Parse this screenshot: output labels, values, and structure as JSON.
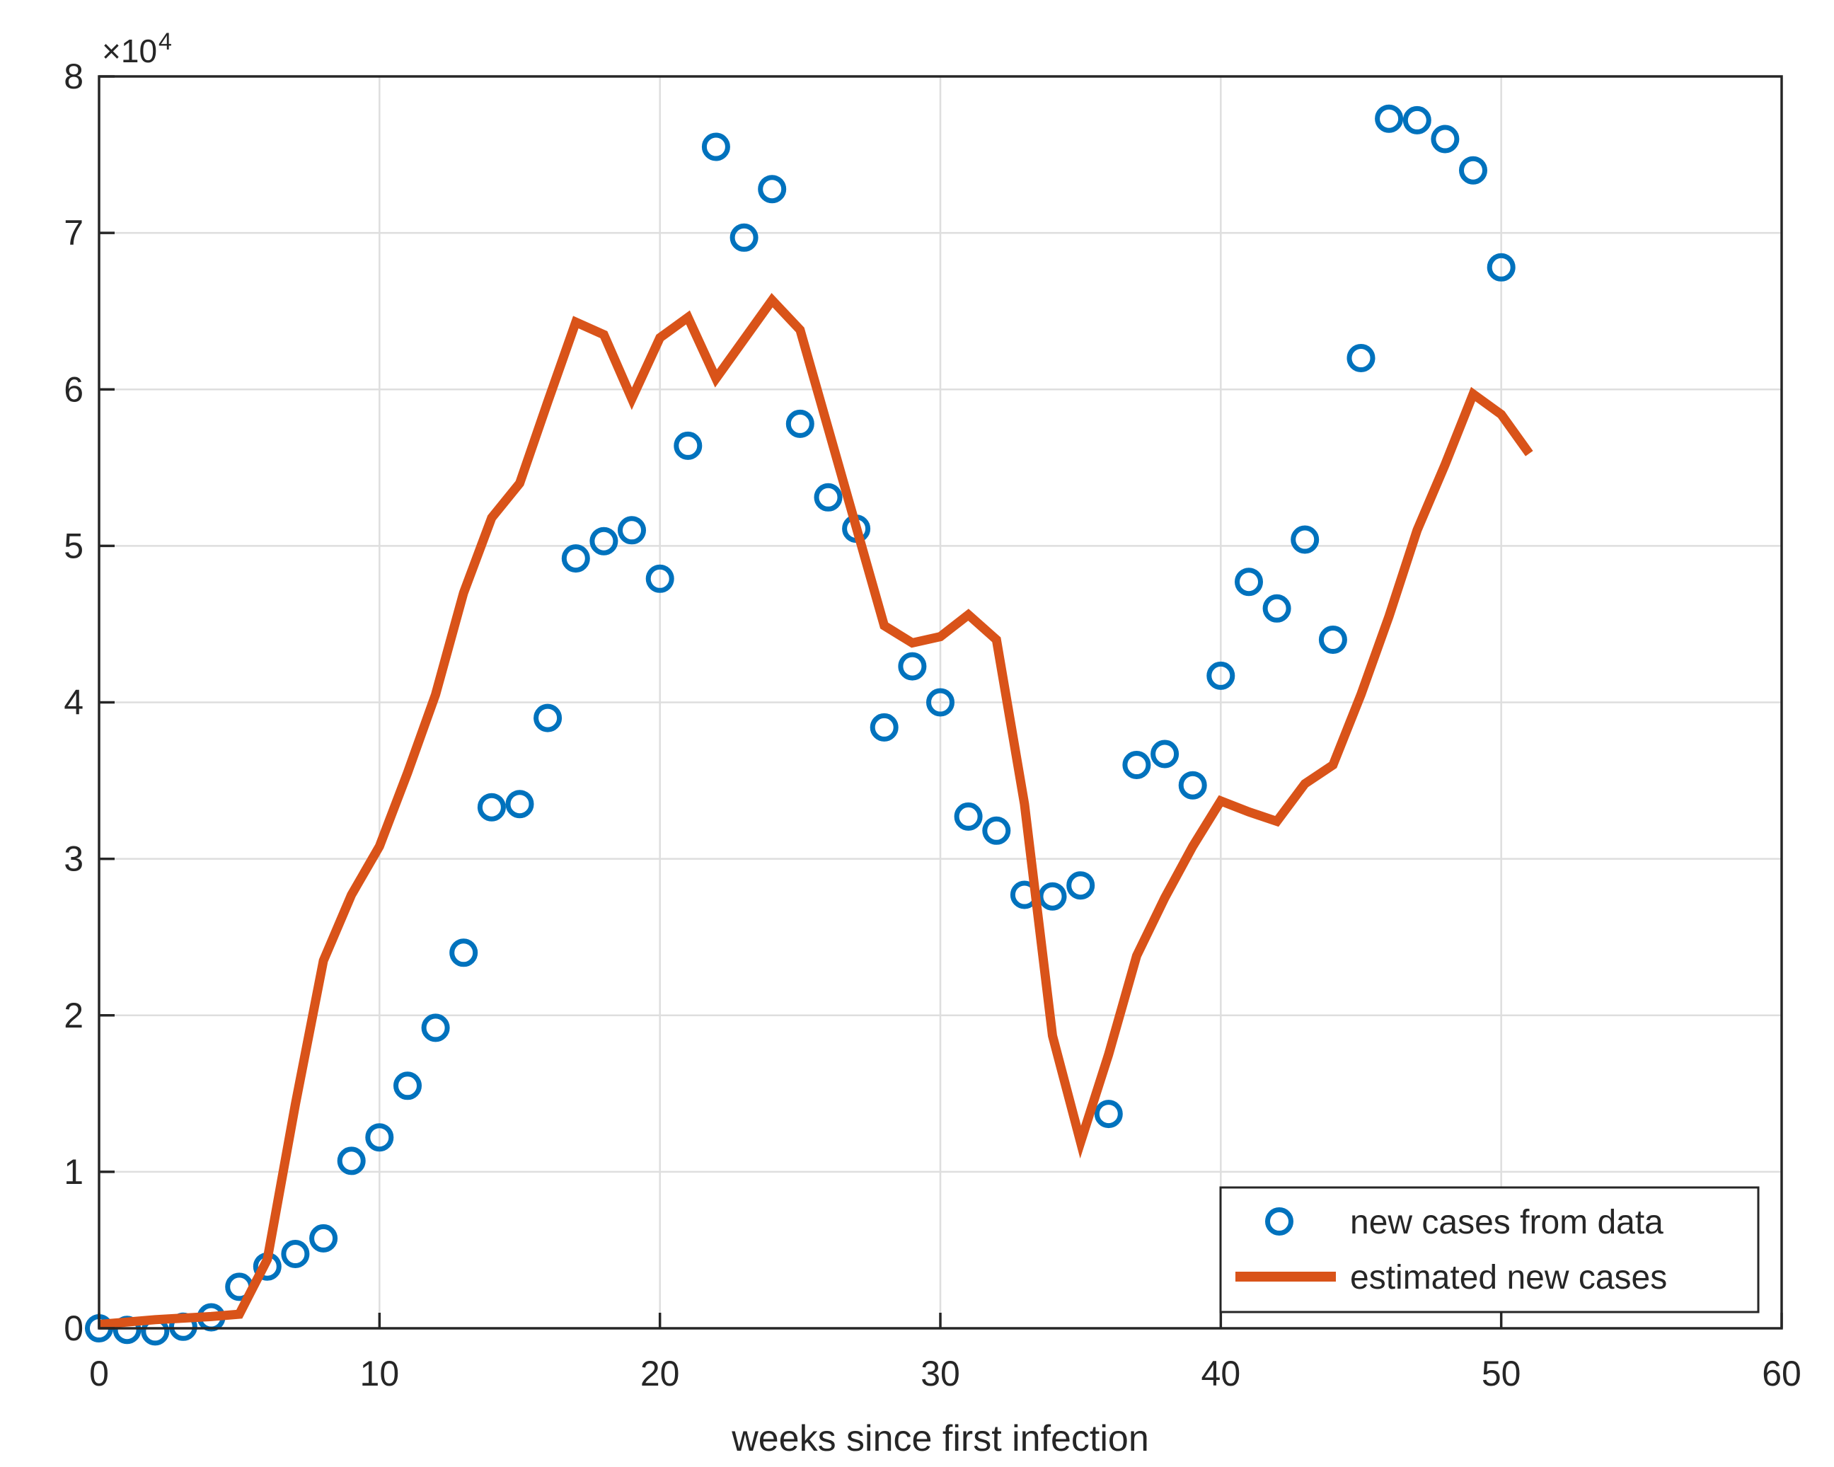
{
  "figure": {
    "xlabel": "weeks since first infection",
    "y_multiplier": {
      "prefix": "×10",
      "exponent": "4"
    },
    "legend": [
      {
        "label": "new cases from data",
        "marker": "circle"
      },
      {
        "label": "estimated new cases",
        "marker": "line"
      }
    ],
    "colors": {
      "scatter": "#0072BD",
      "line": "#D95319",
      "grid": "#dedede",
      "axis": "#262626",
      "background": "#ffffff"
    }
  },
  "chart_data": {
    "type": "scatter+line",
    "title": "",
    "xlabel": "weeks since first infection",
    "ylabel": "",
    "x_range": [
      0,
      60
    ],
    "y_range": [
      0,
      80000
    ],
    "x_tick_values": [
      0,
      10,
      20,
      30,
      40,
      50,
      60
    ],
    "y_tick_values": [
      0,
      1,
      2,
      3,
      4,
      5,
      6,
      7,
      8
    ],
    "y_tick_scale": 10000,
    "grid": true,
    "legend_position": "southeast",
    "series": [
      {
        "name": "new cases from data",
        "type": "scatter",
        "color": "#0072BD",
        "marker_radius": 16.5,
        "marker_stroke": 7,
        "x": [
          0,
          1,
          2,
          3,
          4,
          5,
          6,
          7,
          8,
          9,
          10,
          11,
          12,
          13,
          14,
          15,
          16,
          17,
          18,
          19,
          20,
          21,
          22,
          23,
          24,
          25,
          26,
          27,
          28,
          29,
          30,
          31,
          32,
          33,
          34,
          35,
          36,
          37,
          38,
          39,
          40,
          41,
          42,
          43,
          44,
          45,
          46,
          47,
          48,
          49,
          50
        ],
        "y": [
          0,
          -100,
          -200,
          100,
          700,
          2650,
          3950,
          4750,
          5750,
          10700,
          12200,
          15500,
          19200,
          24000,
          33300,
          33500,
          39000,
          49200,
          50300,
          51000,
          47900,
          56400,
          75500,
          69700,
          72800,
          57800,
          53100,
          51100,
          38400,
          42300,
          40000,
          32700,
          31800,
          27700,
          27600,
          28300,
          13700,
          36000,
          36700,
          34700,
          41700,
          47700,
          46000,
          50400,
          44000,
          62000,
          77300,
          77200,
          76000,
          74000,
          67800
        ]
      },
      {
        "name": "estimated new cases",
        "type": "line",
        "color": "#D95319",
        "line_width": 13,
        "x": [
          0,
          1,
          2,
          3,
          4,
          5,
          6,
          7,
          8,
          9,
          10,
          11,
          12,
          13,
          14,
          15,
          16,
          17,
          18,
          19,
          20,
          21,
          22,
          23,
          24,
          25,
          26,
          27,
          28,
          29,
          30,
          31,
          32,
          33,
          34,
          35,
          36,
          37,
          38,
          39,
          40,
          41,
          42,
          43,
          44,
          45,
          46,
          47,
          48,
          49,
          50,
          51
        ],
        "y": [
          250,
          400,
          550,
          650,
          750,
          900,
          4400,
          14300,
          23500,
          27700,
          30800,
          35500,
          40500,
          47000,
          51800,
          54000,
          59200,
          64300,
          63500,
          59400,
          63300,
          64600,
          60700,
          63200,
          65700,
          63800,
          57500,
          51200,
          44900,
          43800,
          44200,
          45600,
          44000,
          33500,
          18700,
          11900,
          17500,
          23800,
          27500,
          30800,
          33700,
          33000,
          32400,
          34800,
          36000,
          40500,
          45500,
          51000,
          55200,
          59700,
          58400,
          55900
        ]
      }
    ]
  }
}
